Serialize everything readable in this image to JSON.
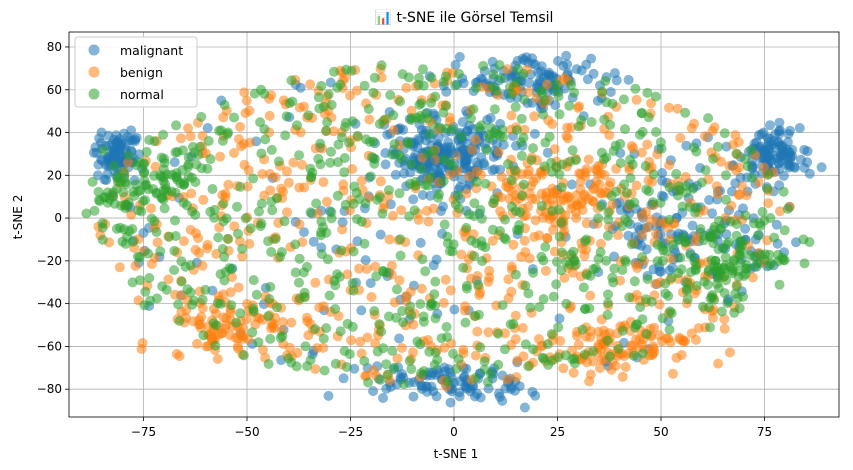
{
  "chart_data": {
    "type": "scatter",
    "title": "📊 t-SNE ile Görsel Temsil",
    "xlabel": "t-SNE 1",
    "ylabel": "t-SNE 2",
    "xlim": [
      -93,
      93
    ],
    "ylim": [
      -93,
      87
    ],
    "xticks": [
      -75,
      -50,
      -25,
      0,
      25,
      50,
      75
    ],
    "yticks": [
      -80,
      -60,
      -40,
      -20,
      0,
      20,
      40,
      60,
      80
    ],
    "xtick_labels": [
      "−75",
      "−50",
      "−25",
      "0",
      "25",
      "50",
      "75"
    ],
    "ytick_labels": [
      "−80",
      "−60",
      "−40",
      "−20",
      "0",
      "20",
      "40",
      "60",
      "80"
    ],
    "grid": true,
    "legend_position": "upper-left",
    "marker_alpha": 0.55,
    "extent": {
      "ellipse_center": [
        -2,
        -3
      ],
      "ellipse_radius": [
        84,
        76
      ]
    },
    "series": [
      {
        "name": "malignant",
        "color": "#1f77b4",
        "clusters": [
          {
            "center": [
              -2,
              28
            ],
            "spread": [
              7,
              9
            ],
            "weight": 0.05
          },
          {
            "center": [
              77,
              30
            ],
            "spread": [
              4,
              6
            ],
            "weight": 0.02
          },
          {
            "center": [
              -82,
              30
            ],
            "spread": [
              3,
              5
            ],
            "weight": 0.015
          },
          {
            "center": [
              -2,
              -78
            ],
            "spread": [
              10,
              4
            ],
            "weight": 0.02
          },
          {
            "center": [
              20,
              65
            ],
            "spread": [
              10,
              6
            ],
            "weight": 0.02
          },
          {
            "center": [
              55,
              -5
            ],
            "spread": [
              12,
              14
            ],
            "weight": 0.02
          }
        ]
      },
      {
        "name": "benign",
        "color": "#ff7f0e",
        "clusters": [
          {
            "center": [
              25,
              10
            ],
            "spread": [
              10,
              12
            ],
            "weight": 0.02
          },
          {
            "center": [
              -55,
              -50
            ],
            "spread": [
              8,
              8
            ],
            "weight": 0.015
          },
          {
            "center": [
              40,
              -60
            ],
            "spread": [
              10,
              6
            ],
            "weight": 0.015
          }
        ]
      },
      {
        "name": "normal",
        "color": "#2ca02c",
        "clusters": [
          {
            "center": [
              -75,
              15
            ],
            "spread": [
              8,
              10
            ],
            "weight": 0.02
          },
          {
            "center": [
              65,
              -20
            ],
            "spread": [
              8,
              10
            ],
            "weight": 0.015
          }
        ]
      }
    ]
  }
}
